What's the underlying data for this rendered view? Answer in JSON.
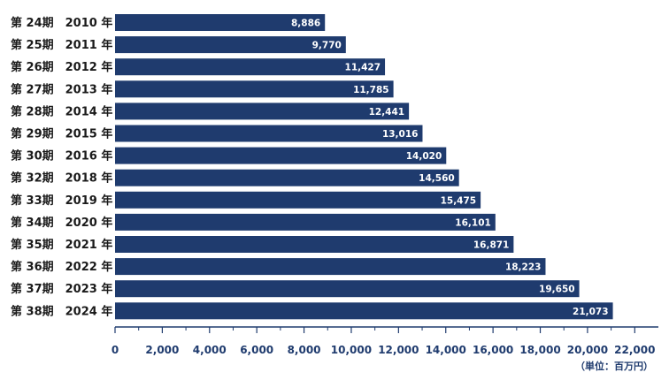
{
  "chart_data": {
    "type": "bar",
    "orientation": "horizontal",
    "categories": [
      "第 24期　2010 年",
      "第 25期　2011 年",
      "第 26期　2012 年",
      "第 27期　2013 年",
      "第 28期　2014 年",
      "第 29期　2015 年",
      "第 30期　2016 年",
      "第 32期　2018 年",
      "第 33期　2019 年",
      "第 34期　2020 年",
      "第 35期　2021 年",
      "第 36期　2022 年",
      "第 37期　2023 年",
      "第 38期　2024 年"
    ],
    "values": [
      8886,
      9770,
      11427,
      11785,
      12441,
      13016,
      14020,
      14560,
      15475,
      16101,
      16871,
      18223,
      19650,
      21073
    ],
    "value_labels": [
      "8,886",
      "9,770",
      "11,427",
      "11,785",
      "12,441",
      "13,016",
      "14,020",
      "14,560",
      "15,475",
      "16,101",
      "16,871",
      "18,223",
      "19,650",
      "21,073"
    ],
    "xlim": [
      0,
      23000
    ],
    "major_ticks": [
      0,
      2000,
      4000,
      6000,
      8000,
      10000,
      12000,
      14000,
      16000,
      18000,
      20000,
      22000
    ],
    "tick_labels": [
      "0",
      "2,000",
      "4,000",
      "6,000",
      "8,000",
      "10,000",
      "12,000",
      "14,000",
      "16,000",
      "18,000",
      "20,000",
      "22,000"
    ],
    "minor_tick_step": 1000,
    "unit_label": "（単位：百万円）",
    "grid": false,
    "colors": {
      "bar": "#1f3b6e",
      "axis": "#1f3b6e",
      "bar_text": "#ffffff"
    }
  }
}
